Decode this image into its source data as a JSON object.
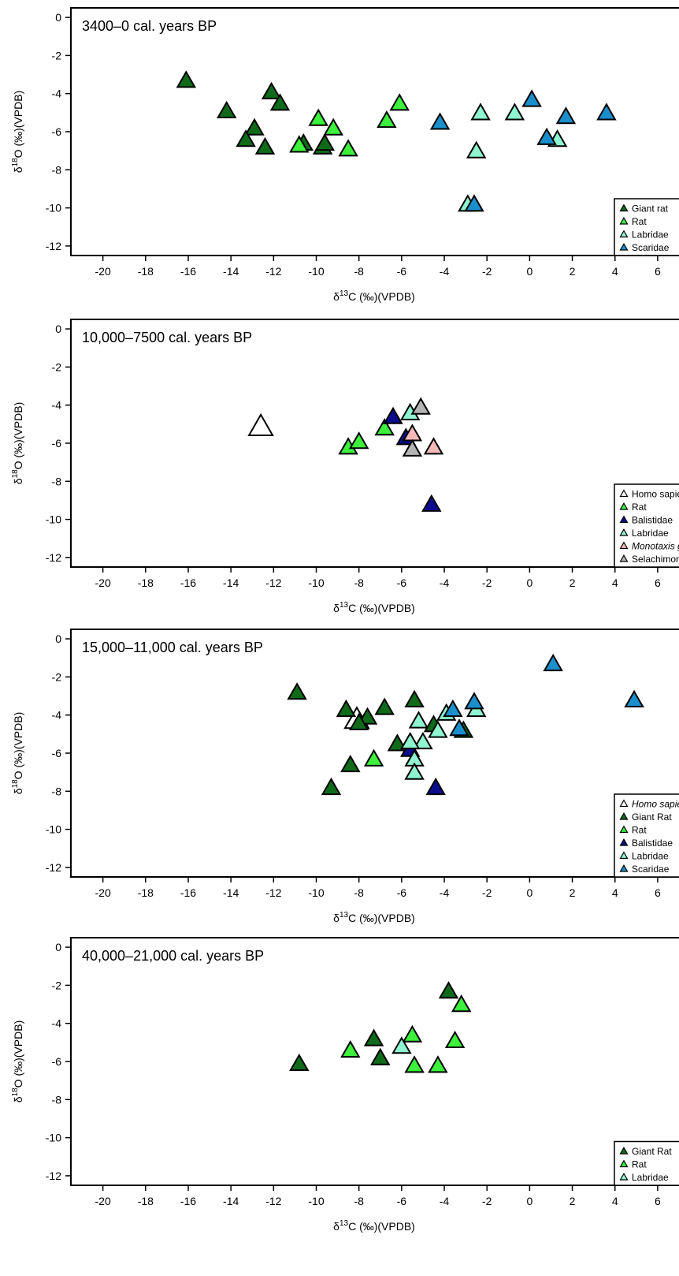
{
  "chart_data": [
    {
      "type": "scatter",
      "title": "3400–0 cal. years BP",
      "xlabel_main": "δ",
      "xlabel_sup": "13",
      "xlabel_rest": "C (‰)(VPDB)",
      "ylabel_main": "δ",
      "ylabel_sup": "18",
      "ylabel_rest": "O (‰)(VPDB)",
      "xlim": [
        -21.5,
        7
      ],
      "ylim": [
        -12.5,
        0.5
      ],
      "xticks": [
        -20,
        -18,
        -16,
        -14,
        -12,
        -10,
        -8,
        -6,
        -4,
        -2,
        0,
        2,
        4,
        6
      ],
      "yticks": [
        0,
        -2,
        -4,
        -6,
        -8,
        -10,
        -12
      ],
      "legend_position": "bottom-right",
      "series": [
        {
          "name": "Giant rat",
          "color": "#0f6b1a",
          "points": [
            [
              -16.1,
              -3.3
            ],
            [
              -14.2,
              -4.9
            ],
            [
              -12.1,
              -3.9
            ],
            [
              -11.7,
              -4.5
            ],
            [
              -12.9,
              -5.8
            ],
            [
              -13.3,
              -6.4
            ],
            [
              -12.4,
              -6.8
            ],
            [
              -10.6,
              -6.6
            ],
            [
              -9.7,
              -6.8
            ],
            [
              -9.6,
              -6.6
            ]
          ]
        },
        {
          "name": "Rat",
          "color": "#3cf03c",
          "points": [
            [
              -9.9,
              -5.3
            ],
            [
              -9.2,
              -5.8
            ],
            [
              -10.8,
              -6.7
            ],
            [
              -8.5,
              -6.9
            ],
            [
              -6.1,
              -4.5
            ],
            [
              -6.7,
              -5.4
            ]
          ]
        },
        {
          "name": "Labridae",
          "color": "#8ef5d0",
          "points": [
            [
              -2.3,
              -5.0
            ],
            [
              -0.7,
              -5.0
            ],
            [
              1.3,
              -6.4
            ],
            [
              -2.5,
              -7.0
            ],
            [
              -2.9,
              -9.8
            ]
          ]
        },
        {
          "name": "Scaridae",
          "color": "#1a8fcc",
          "points": [
            [
              -4.2,
              -5.5
            ],
            [
              0.1,
              -4.3
            ],
            [
              1.7,
              -5.2
            ],
            [
              3.6,
              -5.0
            ],
            [
              0.8,
              -6.3
            ],
            [
              -2.6,
              -9.8
            ]
          ]
        }
      ]
    },
    {
      "type": "scatter",
      "title": "10,000–7500 cal. years BP",
      "xlabel_main": "δ",
      "xlabel_sup": "13",
      "xlabel_rest": "C (‰)(VPDB)",
      "ylabel_main": "δ",
      "ylabel_sup": "18",
      "ylabel_rest": "O (‰)(VPDB)",
      "xlim": [
        -21.5,
        7
      ],
      "ylim": [
        -12.5,
        0.5
      ],
      "xticks": [
        -20,
        -18,
        -16,
        -14,
        -12,
        -10,
        -8,
        -6,
        -4,
        -2,
        0,
        2,
        4,
        6
      ],
      "yticks": [
        0,
        -2,
        -4,
        -6,
        -8,
        -10,
        -12
      ],
      "legend_position": "bottom-right",
      "series": [
        {
          "name": "Homo sapiens",
          "color": "#ffffff",
          "large": true,
          "points": [
            [
              -12.6,
              -5.1
            ]
          ]
        },
        {
          "name": "Rat",
          "color": "#3cf03c",
          "points": [
            [
              -8.5,
              -6.2
            ],
            [
              -8.0,
              -5.9
            ],
            [
              -6.8,
              -5.2
            ]
          ]
        },
        {
          "name": "Balistidae",
          "color": "#0c0c8c",
          "points": [
            [
              -6.4,
              -4.6
            ],
            [
              -5.8,
              -5.7
            ],
            [
              -4.6,
              -9.2
            ]
          ]
        },
        {
          "name": "Labridae",
          "color": "#8ef5d0",
          "points": [
            [
              -5.6,
              -4.4
            ]
          ]
        },
        {
          "name": "Monotaxis grandoculis",
          "italic": true,
          "color": "#f4b9b9",
          "points": [
            [
              -5.5,
              -5.5
            ],
            [
              -4.5,
              -6.2
            ]
          ]
        },
        {
          "name": "Selachimorpha",
          "color": "#b4b4b4",
          "points": [
            [
              -5.1,
              -4.1
            ],
            [
              -5.5,
              -6.3
            ]
          ]
        }
      ]
    },
    {
      "type": "scatter",
      "title": "15,000–11,000 cal. years BP",
      "xlabel_main": "δ",
      "xlabel_sup": "13",
      "xlabel_rest": "C (‰)(VPDB)",
      "ylabel_main": "δ",
      "ylabel_sup": "18",
      "ylabel_rest": "O (‰)(VPDB)",
      "xlim": [
        -21.5,
        7
      ],
      "ylim": [
        -12.5,
        0.5
      ],
      "xticks": [
        -20,
        -18,
        -16,
        -14,
        -12,
        -10,
        -8,
        -6,
        -4,
        -2,
        0,
        2,
        4,
        6
      ],
      "yticks": [
        0,
        -2,
        -4,
        -6,
        -8,
        -10,
        -12
      ],
      "legend_position": "bottom-right",
      "series": [
        {
          "name": "Homo sapiens",
          "italic": true,
          "color": "#ffffff",
          "large": true,
          "points": [
            [
              -8.1,
              -4.2
            ]
          ]
        },
        {
          "name": "Giant Rat",
          "color": "#0f6b1a",
          "points": [
            [
              -10.9,
              -2.8
            ],
            [
              -8.6,
              -3.7
            ],
            [
              -7.6,
              -4.1
            ],
            [
              -6.8,
              -3.6
            ],
            [
              -8.0,
              -4.4
            ],
            [
              -5.4,
              -3.2
            ],
            [
              -4.5,
              -4.5
            ],
            [
              -6.2,
              -5.5
            ],
            [
              -8.4,
              -6.6
            ],
            [
              -9.3,
              -7.8
            ],
            [
              -3.1,
              -4.8
            ]
          ]
        },
        {
          "name": "Rat",
          "color": "#3cf03c",
          "points": [
            [
              -7.3,
              -6.3
            ]
          ]
        },
        {
          "name": "Balistidae",
          "color": "#0c0c8c",
          "points": [
            [
              -5.6,
              -5.8
            ],
            [
              -4.4,
              -7.8
            ]
          ]
        },
        {
          "name": "Labridae",
          "color": "#8ef5d0",
          "points": [
            [
              -5.2,
              -4.3
            ],
            [
              -4.3,
              -4.8
            ],
            [
              -3.9,
              -3.9
            ],
            [
              -5.0,
              -5.4
            ],
            [
              -5.6,
              -5.4
            ],
            [
              -5.4,
              -6.3
            ],
            [
              -5.4,
              -7.0
            ],
            [
              -2.5,
              -3.7
            ]
          ]
        },
        {
          "name": "Scaridae",
          "color": "#1a8fcc",
          "points": [
            [
              1.1,
              -1.3
            ],
            [
              -3.6,
              -3.7
            ],
            [
              -2.6,
              -3.3
            ],
            [
              -3.3,
              -4.7
            ],
            [
              4.9,
              -3.2
            ]
          ]
        }
      ]
    },
    {
      "type": "scatter",
      "title": "40,000–21,000 cal. years BP",
      "xlabel_main": "δ",
      "xlabel_sup": "13",
      "xlabel_rest": "C (‰)(VPDB)",
      "ylabel_main": "δ",
      "ylabel_sup": "18",
      "ylabel_rest": "O (‰)(VPDB)",
      "xlim": [
        -21.5,
        7
      ],
      "ylim": [
        -12.5,
        0.5
      ],
      "xticks": [
        -20,
        -18,
        -16,
        -14,
        -12,
        -10,
        -8,
        -6,
        -4,
        -2,
        0,
        2,
        4,
        6
      ],
      "yticks": [
        0,
        -2,
        -4,
        -6,
        -8,
        -10,
        -12
      ],
      "legend_position": "bottom-right",
      "series": [
        {
          "name": "Giant Rat",
          "color": "#0f6b1a",
          "points": [
            [
              -10.8,
              -6.1
            ],
            [
              -7.3,
              -4.8
            ],
            [
              -7.0,
              -5.8
            ],
            [
              -3.8,
              -2.3
            ]
          ]
        },
        {
          "name": "Rat",
          "color": "#3cf03c",
          "points": [
            [
              -8.4,
              -5.4
            ],
            [
              -5.5,
              -4.6
            ],
            [
              -5.4,
              -6.2
            ],
            [
              -4.3,
              -6.2
            ],
            [
              -3.5,
              -4.9
            ],
            [
              -3.2,
              -3.0
            ]
          ]
        },
        {
          "name": "Labridae",
          "color": "#8ef5d0",
          "points": [
            [
              -6.0,
              -5.2
            ]
          ]
        }
      ]
    }
  ]
}
